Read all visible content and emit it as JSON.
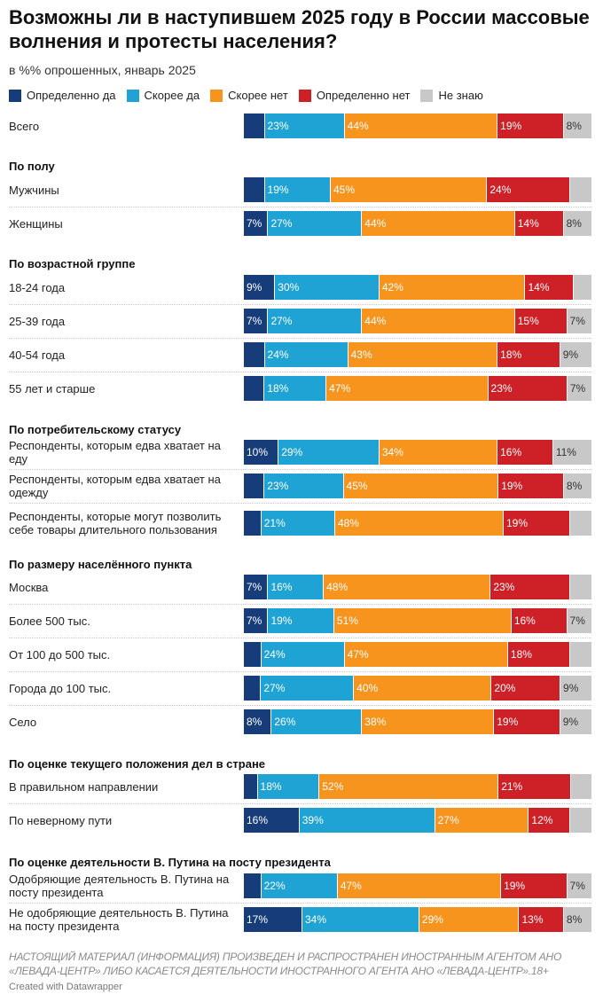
{
  "title": "Возможны ли в наступившем 2025 году в России массовые волнения и протесты населения?",
  "subtitle": "в %% опрошенных, январь 2025",
  "note": "НАСТОЯЩИЙ МАТЕРИАЛ (ИНФОРМАЦИЯ) ПРОИЗВЕДЕН И РАСПРОСТРАНЕН ИНОСТРАННЫМ АГЕНТОМ АНО «ЛЕВАДА-ЦЕНТР» ЛИБО КАСАЕТСЯ ДЕЯТЕЛЬНОСТИ ИНОСТРАННОГО АГЕНТА АНО «ЛЕВАДА-ЦЕНТР».18+",
  "credit": "Created with Datawrapper",
  "chart_data": {
    "type": "bar",
    "orientation": "horizontal",
    "stacked": true,
    "xlim": [
      0,
      100
    ],
    "series": [
      {
        "name": "Определенно да",
        "color": "#163d7a"
      },
      {
        "name": "Скорее да",
        "color": "#1fa3d4"
      },
      {
        "name": "Скорее нет",
        "color": "#f7941d"
      },
      {
        "name": "Определенно нет",
        "color": "#cd2027"
      },
      {
        "name": "Не знаю",
        "color": "#c8c8c8"
      }
    ],
    "groups": [
      {
        "title": "",
        "rows": [
          {
            "label": "Всего",
            "values": [
              6,
              23,
              44,
              19,
              8
            ],
            "labels": [
              "",
              "23%",
              "44%",
              "19%",
              "8%"
            ]
          }
        ]
      },
      {
        "title": "По полу",
        "rows": [
          {
            "label": "Мужчины",
            "values": [
              6,
              19,
              45,
              24,
              6
            ],
            "labels": [
              "",
              "19%",
              "45%",
              "24%",
              ""
            ]
          },
          {
            "label": "Женщины",
            "values": [
              7,
              27,
              44,
              14,
              8
            ],
            "labels": [
              "7%",
              "27%",
              "44%",
              "14%",
              "8%"
            ]
          }
        ]
      },
      {
        "title": "По возрастной группе",
        "rows": [
          {
            "label": "18-24 года",
            "values": [
              9,
              30,
              42,
              14,
              5
            ],
            "labels": [
              "9%",
              "30%",
              "42%",
              "14%",
              ""
            ]
          },
          {
            "label": "25-39 года",
            "values": [
              7,
              27,
              44,
              15,
              7
            ],
            "labels": [
              "7%",
              "27%",
              "44%",
              "15%",
              "7%"
            ]
          },
          {
            "label": "40-54 года",
            "values": [
              6,
              24,
              43,
              18,
              9
            ],
            "labels": [
              "",
              "24%",
              "43%",
              "18%",
              "9%"
            ]
          },
          {
            "label": "55 лет и старше",
            "values": [
              6,
              18,
              47,
              23,
              7
            ],
            "labels": [
              "",
              "18%",
              "47%",
              "23%",
              "7%"
            ]
          }
        ]
      },
      {
        "title": "По потребительскому статусу",
        "rows": [
          {
            "label": "Респонденты, которым едва хватает на еду",
            "values": [
              10,
              29,
              34,
              16,
              11
            ],
            "labels": [
              "10%",
              "29%",
              "34%",
              "16%",
              "11%"
            ]
          },
          {
            "label": "Респонденты, которым едва хватает на одежду",
            "values": [
              6,
              23,
              45,
              19,
              8
            ],
            "labels": [
              "",
              "23%",
              "45%",
              "19%",
              "8%"
            ]
          },
          {
            "label": "Респонденты, которые могут позволить себе товары длительного пользования",
            "values": [
              5,
              21,
              48,
              19,
              6
            ],
            "labels": [
              "",
              "21%",
              "48%",
              "19%",
              ""
            ]
          }
        ]
      },
      {
        "title": "По размеру населённого пункта",
        "rows": [
          {
            "label": "Москва",
            "values": [
              7,
              16,
              48,
              23,
              6
            ],
            "labels": [
              "7%",
              "16%",
              "48%",
              "23%",
              ""
            ]
          },
          {
            "label": "Более 500 тыс.",
            "values": [
              7,
              19,
              51,
              16,
              7
            ],
            "labels": [
              "7%",
              "19%",
              "51%",
              "16%",
              "7%"
            ]
          },
          {
            "label": "От 100 до 500 тыс.",
            "values": [
              5,
              24,
              47,
              18,
              6
            ],
            "labels": [
              "",
              "24%",
              "47%",
              "18%",
              ""
            ]
          },
          {
            "label": "Города до 100 тыс.",
            "values": [
              5,
              27,
              40,
              20,
              9
            ],
            "labels": [
              "",
              "27%",
              "40%",
              "20%",
              "9%"
            ]
          },
          {
            "label": "Село",
            "values": [
              8,
              26,
              38,
              19,
              9
            ],
            "labels": [
              "8%",
              "26%",
              "38%",
              "19%",
              "9%"
            ]
          }
        ]
      },
      {
        "title": "По оценке текущего положения дел в стране",
        "rows": [
          {
            "label": "В правильном направлении",
            "values": [
              4,
              18,
              52,
              21,
              6
            ],
            "labels": [
              "",
              "18%",
              "52%",
              "21%",
              ""
            ]
          },
          {
            "label": "По неверному пути",
            "values": [
              16,
              39,
              27,
              12,
              6
            ],
            "labels": [
              "16%",
              "39%",
              "27%",
              "12%",
              ""
            ]
          }
        ]
      },
      {
        "title": "По оценке деятельности В. Путина на посту президента",
        "rows": [
          {
            "label": "Одобряющие деятельность В. Путина на посту президента",
            "values": [
              5,
              22,
              47,
              19,
              7
            ],
            "labels": [
              "",
              "22%",
              "47%",
              "19%",
              "7%"
            ]
          },
          {
            "label": "Не одобряющие деятельность В. Путина на посту президента",
            "values": [
              17,
              34,
              29,
              13,
              8
            ],
            "labels": [
              "17%",
              "34%",
              "29%",
              "13%",
              "8%"
            ]
          }
        ]
      }
    ]
  }
}
